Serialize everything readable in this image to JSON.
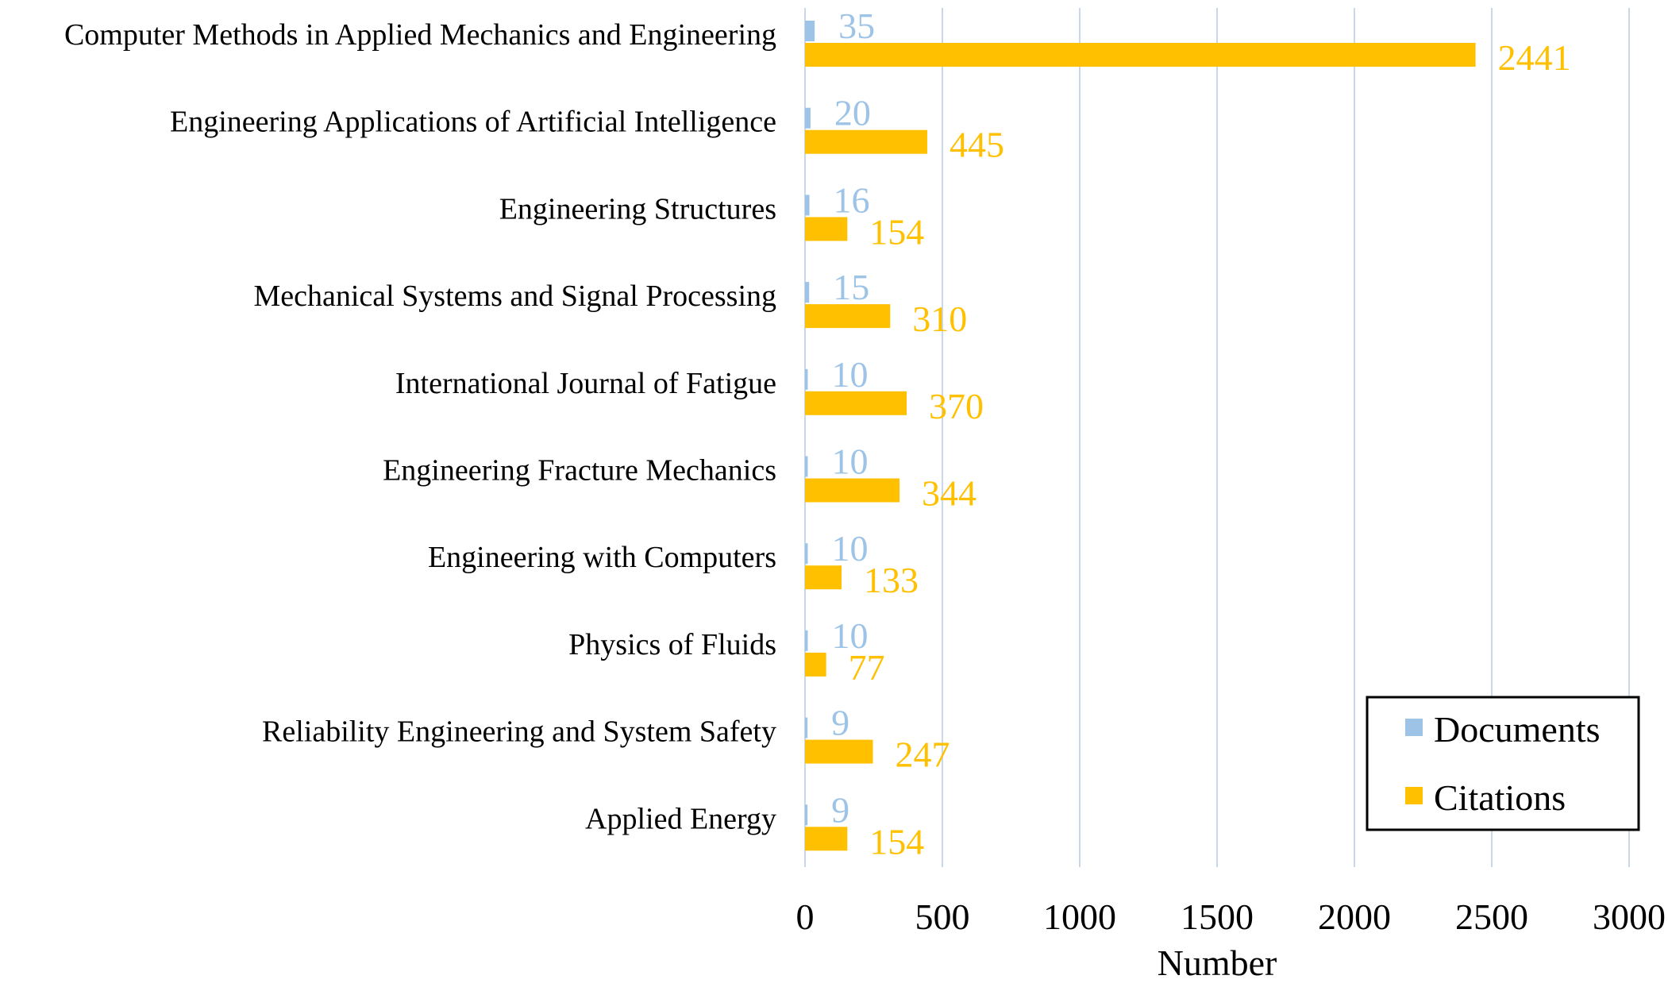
{
  "chart_data": {
    "type": "bar",
    "orientation": "horizontal",
    "title": "",
    "xlabel": "Number",
    "ylabel": "",
    "xlim": [
      0,
      3000
    ],
    "xticks": [
      0,
      500,
      1000,
      1500,
      2000,
      2500,
      3000
    ],
    "xtick_labels": [
      "0",
      "500",
      "1000",
      "1500",
      "2000",
      "2500",
      "3000"
    ],
    "grid": "vertical",
    "legend_position": "bottom-right",
    "categories": [
      "Computer Methods in Applied Mechanics and Engineering",
      "Engineering Applications of Artificial Intelligence",
      "Engineering Structures",
      "Mechanical Systems and Signal Processing",
      "International Journal of Fatigue",
      "Engineering Fracture Mechanics",
      "Engineering with Computers",
      "Physics of Fluids",
      "Reliability Engineering and System Safety",
      "Applied Energy"
    ],
    "series": [
      {
        "name": "Documents",
        "color": "#9dc3e6",
        "values": [
          35,
          20,
          16,
          15,
          10,
          10,
          10,
          10,
          9,
          9
        ]
      },
      {
        "name": "Citations",
        "color": "#ffc000",
        "values": [
          2441,
          445,
          154,
          310,
          370,
          344,
          133,
          77,
          247,
          154
        ]
      }
    ],
    "colors": {
      "grid": "#c9d7ea",
      "legend_border": "#000000"
    }
  }
}
